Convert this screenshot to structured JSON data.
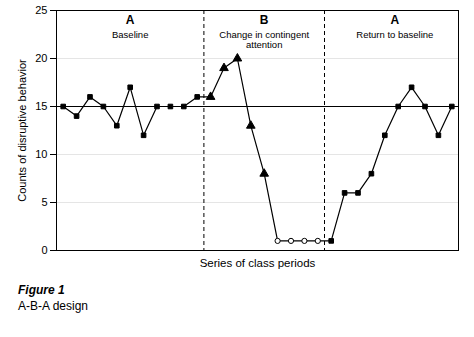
{
  "chart_data": {
    "type": "line",
    "xlabel": "Series of class periods",
    "ylabel": "Counts of disruptive behavior",
    "caption": [
      "Figure 1",
      "A-B-A design"
    ],
    "x": [
      1,
      2,
      3,
      4,
      5,
      6,
      7,
      8,
      9,
      10,
      11,
      12,
      13,
      14,
      15,
      16,
      17,
      18,
      19,
      20,
      21,
      22,
      23,
      24,
      25,
      26,
      27,
      28,
      29,
      30
    ],
    "series": [
      {
        "type": "line",
        "color": "#000000",
        "line_style": "solid",
        "values": [
          15,
          14,
          16,
          15,
          13,
          17,
          12,
          15,
          15,
          15,
          16,
          16,
          19,
          20,
          13,
          8,
          1,
          1,
          1,
          1,
          1,
          6,
          6,
          8,
          12,
          15,
          17,
          15,
          12,
          15
        ]
      },
      {
        "type": "scatter",
        "marker": "square",
        "color": "#000000",
        "values": [
          15,
          14,
          16,
          15,
          13,
          17,
          12,
          15,
          15,
          15,
          16,
          null,
          null,
          null,
          null,
          null,
          null,
          null,
          null,
          null,
          1,
          6,
          6,
          8,
          12,
          15,
          17,
          15,
          12,
          15
        ]
      },
      {
        "type": "scatter",
        "marker": "triangle",
        "color": "#000000",
        "values": [
          null,
          null,
          null,
          null,
          null,
          null,
          null,
          null,
          null,
          null,
          null,
          16,
          19,
          20,
          13,
          8,
          null,
          null,
          null,
          null,
          null,
          null,
          null,
          null,
          null,
          null,
          null,
          null,
          null,
          null
        ]
      },
      {
        "type": "scatter",
        "marker": "open_circle",
        "color": "#000000",
        "values": [
          null,
          null,
          null,
          null,
          null,
          null,
          null,
          null,
          null,
          null,
          null,
          null,
          null,
          null,
          null,
          null,
          1,
          1,
          1,
          1,
          null,
          null,
          null,
          null,
          null,
          null,
          null,
          null,
          null,
          null
        ]
      }
    ],
    "annotations": [
      {
        "type": "hline",
        "y": 15,
        "color": "#000000",
        "line_style": "solid"
      },
      {
        "type": "vline",
        "x": 11.5,
        "color": "#000000",
        "line_style": "dashed"
      },
      {
        "type": "vline",
        "x": 20.5,
        "color": "#000000",
        "line_style": "dashed"
      },
      {
        "type": "text",
        "text": "A",
        "x": 6.0,
        "y": 24.5,
        "bold": true
      },
      {
        "type": "text",
        "text": "Baseline",
        "x": 6.0,
        "y": 22.8,
        "bold": false
      },
      {
        "type": "text",
        "text": "B",
        "x": 16.0,
        "y": 24.5,
        "bold": true
      },
      {
        "type": "text",
        "text": "Change in contingent\nattention",
        "x": 16.0,
        "y": 22.8,
        "bold": false
      },
      {
        "type": "text",
        "text": "A",
        "x": 25.75,
        "y": 24.5,
        "bold": true
      },
      {
        "type": "text",
        "text": "Return to baseline",
        "x": 25.75,
        "y": 22.8,
        "bold": false
      }
    ],
    "xlim": [
      0.5,
      30.5
    ],
    "xticks": [],
    "ylim": [
      0,
      25
    ],
    "yticks": [
      0,
      5,
      10,
      15,
      20,
      25
    ],
    "grid": true,
    "tick_labels": "y"
  }
}
